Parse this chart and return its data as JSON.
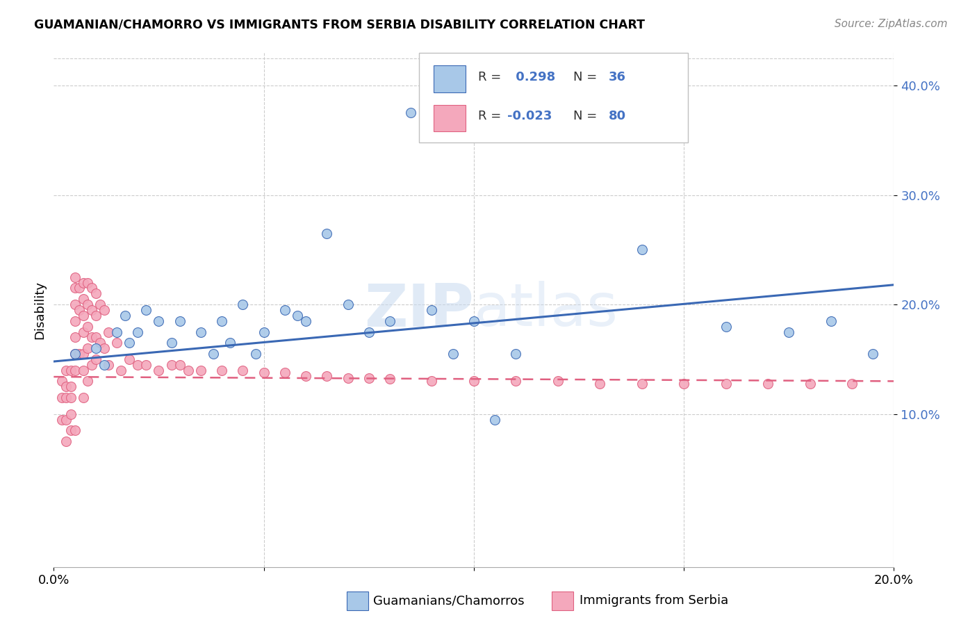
{
  "title": "GUAMANIAN/CHAMORRO VS IMMIGRANTS FROM SERBIA DISABILITY CORRELATION CHART",
  "source": "Source: ZipAtlas.com",
  "ylabel": "Disability",
  "xlim": [
    0.0,
    0.2
  ],
  "ylim": [
    -0.04,
    0.43
  ],
  "yticks": [
    0.1,
    0.2,
    0.3,
    0.4
  ],
  "ytick_labels": [
    "10.0%",
    "20.0%",
    "30.0%",
    "40.0%"
  ],
  "xticks": [
    0.0,
    0.05,
    0.1,
    0.15,
    0.2
  ],
  "xtick_labels": [
    "0.0%",
    "",
    "",
    "",
    "20.0%"
  ],
  "blue_R": 0.298,
  "blue_N": 36,
  "pink_R": -0.023,
  "pink_N": 80,
  "blue_color": "#a8c8e8",
  "pink_color": "#f4a8bc",
  "blue_line_color": "#3a68b4",
  "pink_line_color": "#e06080",
  "watermark": "ZIPatlas",
  "legend_label_blue": "Guamanians/Chamorros",
  "legend_label_pink": "Immigrants from Serbia",
  "blue_line_x0": 0.0,
  "blue_line_y0": 0.148,
  "blue_line_x1": 0.2,
  "blue_line_y1": 0.218,
  "pink_line_x0": 0.0,
  "pink_line_y0": 0.134,
  "pink_line_x1": 0.2,
  "pink_line_y1": 0.13,
  "blue_scatter_x": [
    0.005,
    0.01,
    0.012,
    0.015,
    0.017,
    0.018,
    0.02,
    0.022,
    0.025,
    0.028,
    0.03,
    0.035,
    0.038,
    0.04,
    0.042,
    0.045,
    0.048,
    0.05,
    0.055,
    0.058,
    0.06,
    0.065,
    0.07,
    0.075,
    0.08,
    0.085,
    0.09,
    0.095,
    0.1,
    0.105,
    0.11,
    0.14,
    0.16,
    0.175,
    0.185,
    0.195
  ],
  "blue_scatter_y": [
    0.155,
    0.16,
    0.145,
    0.175,
    0.19,
    0.165,
    0.175,
    0.195,
    0.185,
    0.165,
    0.185,
    0.175,
    0.155,
    0.185,
    0.165,
    0.2,
    0.155,
    0.175,
    0.195,
    0.19,
    0.185,
    0.265,
    0.2,
    0.175,
    0.185,
    0.375,
    0.195,
    0.155,
    0.185,
    0.095,
    0.155,
    0.25,
    0.18,
    0.175,
    0.185,
    0.155
  ],
  "pink_scatter_x": [
    0.002,
    0.002,
    0.002,
    0.003,
    0.003,
    0.003,
    0.003,
    0.003,
    0.004,
    0.004,
    0.004,
    0.004,
    0.004,
    0.005,
    0.005,
    0.005,
    0.005,
    0.005,
    0.005,
    0.005,
    0.005,
    0.006,
    0.006,
    0.006,
    0.007,
    0.007,
    0.007,
    0.007,
    0.007,
    0.007,
    0.007,
    0.008,
    0.008,
    0.008,
    0.008,
    0.008,
    0.009,
    0.009,
    0.009,
    0.009,
    0.01,
    0.01,
    0.01,
    0.01,
    0.011,
    0.011,
    0.012,
    0.012,
    0.013,
    0.013,
    0.015,
    0.016,
    0.018,
    0.02,
    0.022,
    0.025,
    0.028,
    0.03,
    0.032,
    0.035,
    0.04,
    0.045,
    0.05,
    0.055,
    0.06,
    0.065,
    0.07,
    0.075,
    0.08,
    0.09,
    0.1,
    0.11,
    0.12,
    0.13,
    0.14,
    0.15,
    0.16,
    0.17,
    0.18,
    0.19
  ],
  "pink_scatter_y": [
    0.13,
    0.115,
    0.095,
    0.14,
    0.125,
    0.115,
    0.095,
    0.075,
    0.14,
    0.125,
    0.115,
    0.1,
    0.085,
    0.225,
    0.215,
    0.2,
    0.185,
    0.17,
    0.155,
    0.14,
    0.085,
    0.215,
    0.195,
    0.155,
    0.22,
    0.205,
    0.19,
    0.175,
    0.155,
    0.14,
    0.115,
    0.22,
    0.2,
    0.18,
    0.16,
    0.13,
    0.215,
    0.195,
    0.17,
    0.145,
    0.21,
    0.19,
    0.17,
    0.15,
    0.2,
    0.165,
    0.195,
    0.16,
    0.175,
    0.145,
    0.165,
    0.14,
    0.15,
    0.145,
    0.145,
    0.14,
    0.145,
    0.145,
    0.14,
    0.14,
    0.14,
    0.14,
    0.138,
    0.138,
    0.135,
    0.135,
    0.133,
    0.133,
    0.132,
    0.13,
    0.13,
    0.13,
    0.13,
    0.128,
    0.128,
    0.128,
    0.128,
    0.128,
    0.128,
    0.128
  ]
}
